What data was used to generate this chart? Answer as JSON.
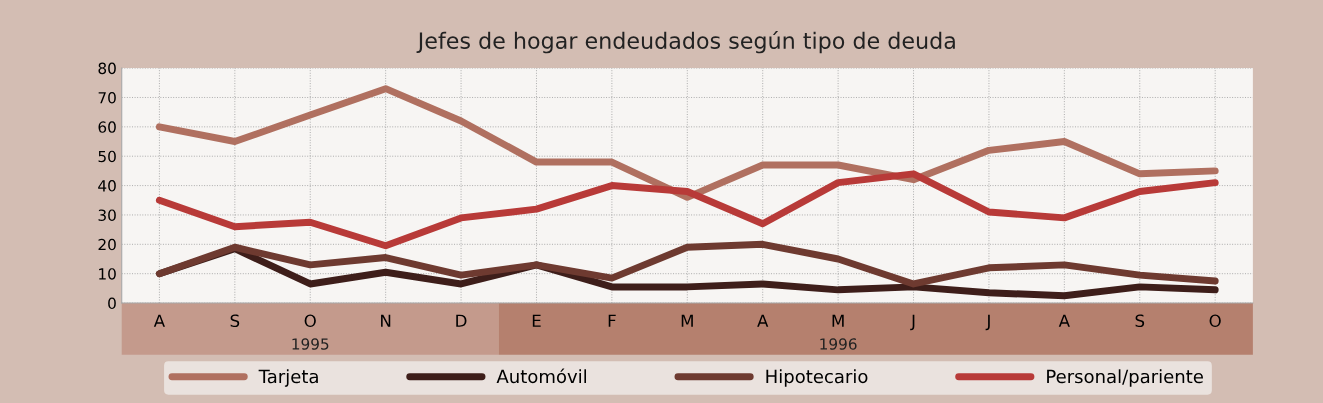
{
  "chart_data": {
    "type": "line",
    "title": "Jefes de hogar endeudados según tipo de deuda",
    "categories": [
      "A",
      "S",
      "O",
      "N",
      "D",
      "E",
      "F",
      "M",
      "A",
      "M",
      "J",
      "J",
      "A",
      "S",
      "O"
    ],
    "series": [
      {
        "name": "Tarjeta",
        "color": "#b07060",
        "values": [
          60,
          55,
          64,
          73,
          62,
          48,
          48,
          36,
          47,
          47,
          42,
          52,
          55,
          44,
          45
        ]
      },
      {
        "name": "Automóvil",
        "color": "#3e1e1a",
        "values": [
          10,
          18.5,
          6.5,
          10.5,
          6.5,
          13,
          5.5,
          5.5,
          6.5,
          4.5,
          5.5,
          3.5,
          2.5,
          5.5,
          4.5
        ]
      },
      {
        "name": "Hipotecario",
        "color": "#6e3a30",
        "values": [
          10,
          19,
          13,
          15.5,
          9.5,
          13,
          8.5,
          19,
          20,
          15,
          6.5,
          12,
          13,
          9.5,
          7.5
        ]
      },
      {
        "name": "Personal/pariente",
        "color": "#b83a38",
        "values": [
          35,
          26,
          27.5,
          19.5,
          29,
          32,
          40,
          38,
          27,
          41,
          44,
          31,
          29,
          38,
          41
        ]
      }
    ],
    "ylim": [
      0,
      80
    ],
    "yticks": [
      0,
      10,
      20,
      30,
      40,
      50,
      60,
      70,
      80
    ],
    "grid": true,
    "legend": "bottom",
    "marker": "none",
    "line_style": "solid",
    "annotations": [
      "1995",
      "1996"
    ]
  }
}
